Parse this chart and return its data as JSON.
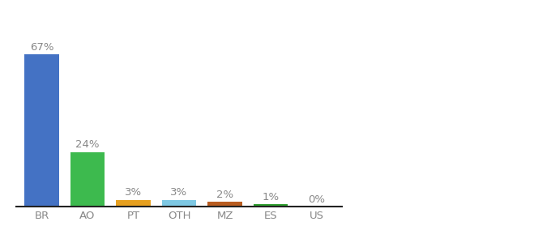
{
  "categories": [
    "BR",
    "AO",
    "PT",
    "OTH",
    "MZ",
    "ES",
    "US"
  ],
  "values": [
    67,
    24,
    3,
    3,
    2,
    1,
    0
  ],
  "labels": [
    "67%",
    "24%",
    "3%",
    "3%",
    "2%",
    "1%",
    "0%"
  ],
  "bar_colors": [
    "#4472c4",
    "#3dba4e",
    "#e6a020",
    "#7ec8e3",
    "#b85c20",
    "#2e9e2e",
    "#cccccc"
  ],
  "background_color": "#ffffff",
  "ylim": [
    0,
    78
  ],
  "label_fontsize": 9.5,
  "tick_fontsize": 9.5,
  "label_color": "#888888",
  "tick_color": "#888888",
  "bar_width": 0.75,
  "bottom_spine_color": "#222222"
}
